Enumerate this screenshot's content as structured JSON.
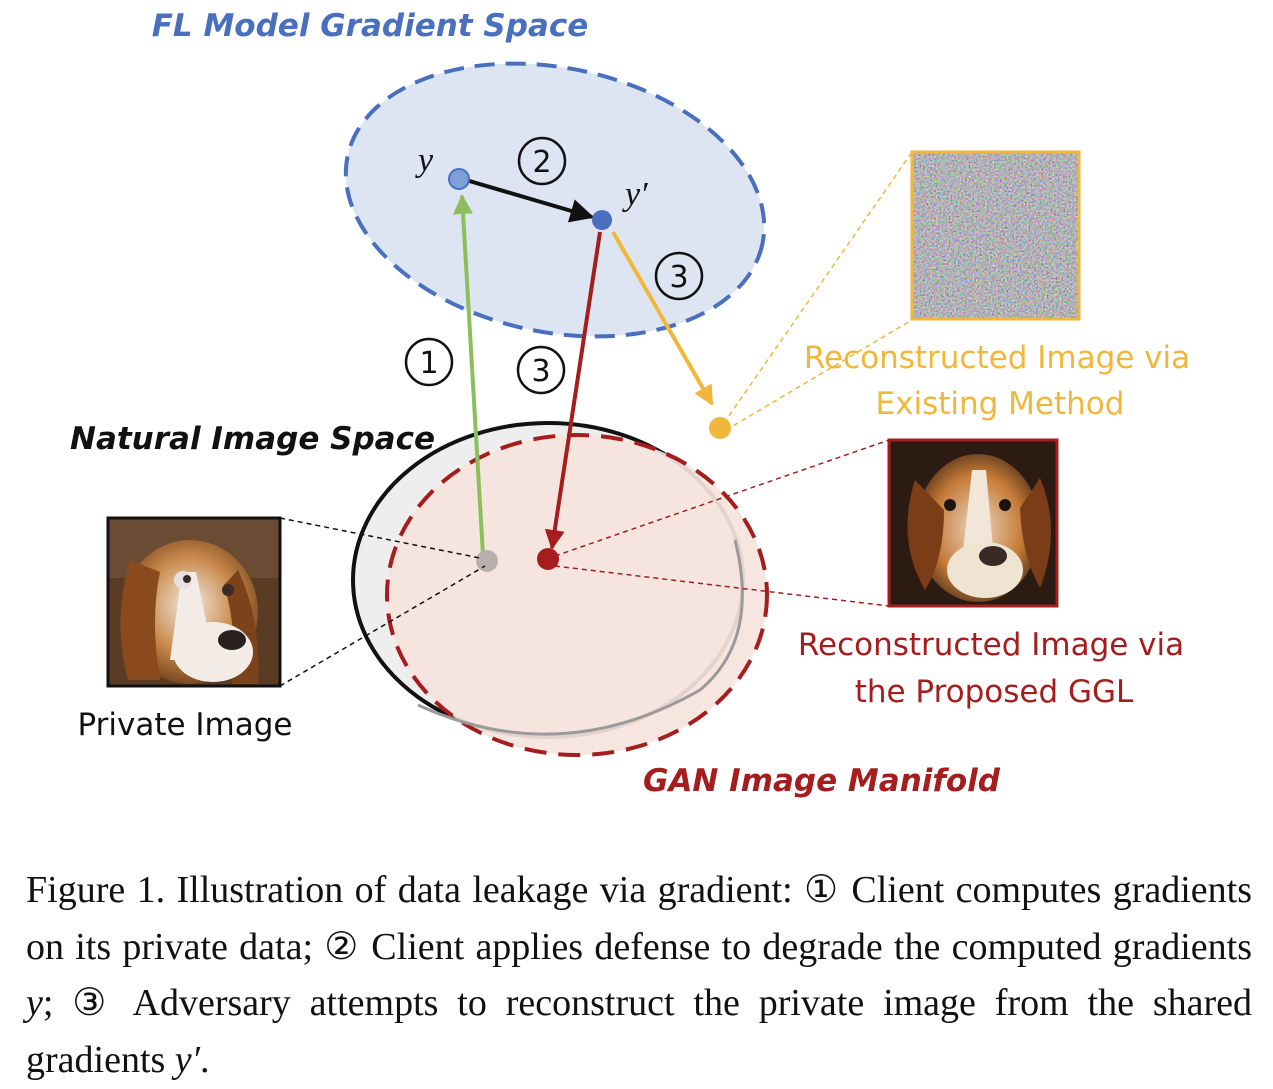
{
  "diagram": {
    "labels": {
      "gradient_space": "FL Model Gradient Space",
      "natural_space": "Natural Image Space",
      "gan_manifold": "GAN Image Manifold",
      "private_image": "Private Image",
      "existing_line1": "Reconstructed Image via",
      "existing_line2": "Existing Method",
      "proposed_line1": "Reconstructed Image via",
      "proposed_line2": "the Proposed GGL",
      "point_y": "y",
      "point_y_prime": "y′"
    },
    "steps": [
      "1",
      "2",
      "3",
      "3"
    ],
    "colors": {
      "gradient_blue": "#4a6fbf",
      "gradient_fill": "#dde5f3",
      "gan_red": "#a51d1d",
      "gan_fill": "#f6e3dd",
      "existing_yellow": "#f0b73a",
      "client_green": "#8cbf5c",
      "natural_black": "#111111"
    }
  },
  "caption": {
    "figure_label": "Figure 1.",
    "text_a": " Illustration of data leakage via gradient: ① Client computes gradients on its private data; ② Client applies defense to degrade the computed gradients ",
    "var_y": "y",
    "text_b": "; ③ Adversary attempts to reconstruct the private image from the shared gradients ",
    "var_y_prime": "y′",
    "text_c": "."
  }
}
